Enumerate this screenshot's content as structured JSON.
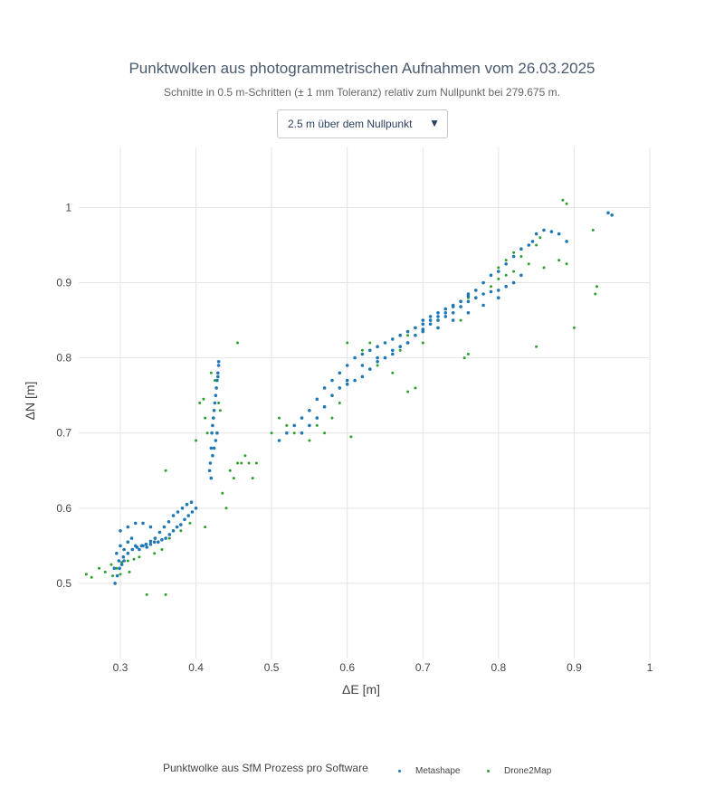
{
  "chart_data": {
    "type": "scatter",
    "title": "Punktwolken aus photogrammetrischen Aufnahmen vom 26.03.2025",
    "subtitle": "Schnitte in 0.5 m-Schritten (± 1 mm Toleranz) relativ zum Nullpunkt bei 279.675 m.",
    "xlabel": "ΔE [m]",
    "ylabel": "ΔN [m]",
    "xlim": [
      0.245,
      1.0
    ],
    "ylim": [
      0.4,
      1.08
    ],
    "x_ticks": [
      0.3,
      0.4,
      0.5,
      0.6,
      0.7,
      0.8,
      0.9,
      1
    ],
    "x_tick_labels": [
      "0.3",
      "0.4",
      "0.5",
      "0.6",
      "0.7",
      "0.8",
      "0.9",
      "1"
    ],
    "y_ticks": [
      0.5,
      0.6,
      0.7,
      0.8,
      0.9,
      1
    ],
    "y_tick_labels": [
      "0.5",
      "0.6",
      "0.7",
      "0.8",
      "0.9",
      "1"
    ],
    "grid": true,
    "legend_position": "bottom",
    "series": [
      {
        "name": "Metashape",
        "color": "#1f77b4",
        "x": [
          0.295,
          0.3,
          0.305,
          0.31,
          0.315,
          0.32,
          0.325,
          0.33,
          0.335,
          0.34,
          0.345,
          0.35,
          0.355,
          0.36,
          0.365,
          0.37,
          0.375,
          0.38,
          0.385,
          0.39,
          0.395,
          0.4,
          0.292,
          0.298,
          0.304,
          0.31,
          0.316,
          0.322,
          0.328,
          0.334,
          0.34,
          0.346,
          0.352,
          0.358,
          0.364,
          0.37,
          0.376,
          0.382,
          0.388,
          0.394,
          0.3,
          0.31,
          0.32,
          0.33,
          0.34,
          0.293,
          0.296,
          0.299,
          0.302,
          0.305,
          0.418,
          0.419,
          0.42,
          0.421,
          0.422,
          0.423,
          0.424,
          0.425,
          0.426,
          0.427,
          0.428,
          0.429,
          0.43,
          0.428,
          0.426,
          0.424,
          0.422,
          0.42,
          0.43,
          0.429,
          0.51,
          0.52,
          0.53,
          0.54,
          0.55,
          0.56,
          0.57,
          0.58,
          0.59,
          0.6,
          0.61,
          0.62,
          0.63,
          0.64,
          0.65,
          0.66,
          0.67,
          0.68,
          0.69,
          0.7,
          0.71,
          0.72,
          0.73,
          0.74,
          0.75,
          0.76,
          0.77,
          0.78,
          0.79,
          0.8,
          0.81,
          0.82,
          0.83,
          0.54,
          0.55,
          0.56,
          0.57,
          0.58,
          0.59,
          0.6,
          0.61,
          0.62,
          0.63,
          0.64,
          0.65,
          0.66,
          0.67,
          0.68,
          0.69,
          0.7,
          0.71,
          0.72,
          0.73,
          0.74,
          0.75,
          0.76,
          0.77,
          0.78,
          0.79,
          0.8,
          0.81,
          0.82,
          0.83,
          0.6,
          0.62,
          0.64,
          0.66,
          0.68,
          0.7,
          0.72,
          0.74,
          0.76,
          0.78,
          0.8,
          0.7,
          0.71,
          0.72,
          0.73,
          0.74,
          0.75,
          0.76,
          0.85,
          0.86,
          0.87,
          0.88,
          0.89,
          0.945,
          0.95,
          0.84,
          0.845
        ],
        "y": [
          0.54,
          0.55,
          0.545,
          0.555,
          0.56,
          0.55,
          0.545,
          0.55,
          0.548,
          0.552,
          0.555,
          0.555,
          0.558,
          0.56,
          0.565,
          0.57,
          0.575,
          0.578,
          0.585,
          0.59,
          0.595,
          0.6,
          0.52,
          0.53,
          0.535,
          0.54,
          0.545,
          0.548,
          0.55,
          0.552,
          0.556,
          0.56,
          0.568,
          0.575,
          0.582,
          0.59,
          0.595,
          0.6,
          0.605,
          0.608,
          0.57,
          0.575,
          0.58,
          0.58,
          0.575,
          0.5,
          0.51,
          0.52,
          0.525,
          0.53,
          0.65,
          0.66,
          0.68,
          0.7,
          0.71,
          0.72,
          0.73,
          0.74,
          0.75,
          0.76,
          0.77,
          0.78,
          0.79,
          0.7,
          0.69,
          0.68,
          0.67,
          0.64,
          0.795,
          0.775,
          0.69,
          0.7,
          0.71,
          0.72,
          0.73,
          0.745,
          0.76,
          0.77,
          0.78,
          0.79,
          0.8,
          0.805,
          0.81,
          0.815,
          0.82,
          0.825,
          0.83,
          0.835,
          0.84,
          0.845,
          0.85,
          0.855,
          0.86,
          0.868,
          0.875,
          0.882,
          0.89,
          0.9,
          0.91,
          0.915,
          0.925,
          0.935,
          0.945,
          0.7,
          0.71,
          0.72,
          0.735,
          0.75,
          0.76,
          0.765,
          0.77,
          0.775,
          0.785,
          0.795,
          0.8,
          0.805,
          0.815,
          0.82,
          0.83,
          0.838,
          0.845,
          0.85,
          0.855,
          0.86,
          0.868,
          0.875,
          0.88,
          0.885,
          0.888,
          0.89,
          0.895,
          0.9,
          0.91,
          0.77,
          0.79,
          0.8,
          0.81,
          0.82,
          0.835,
          0.84,
          0.85,
          0.86,
          0.87,
          0.88,
          0.85,
          0.855,
          0.86,
          0.865,
          0.87,
          0.875,
          0.885,
          0.965,
          0.97,
          0.968,
          0.965,
          0.955,
          0.993,
          0.99,
          0.95,
          0.955
        ]
      },
      {
        "name": "Drone2Map",
        "color": "#2ca02c",
        "x": [
          0.255,
          0.262,
          0.272,
          0.28,
          0.288,
          0.295,
          0.302,
          0.31,
          0.318,
          0.325,
          0.29,
          0.3,
          0.312,
          0.335,
          0.36,
          0.345,
          0.355,
          0.365,
          0.38,
          0.392,
          0.36,
          0.4,
          0.405,
          0.41,
          0.412,
          0.415,
          0.42,
          0.425,
          0.43,
          0.432,
          0.435,
          0.44,
          0.445,
          0.45,
          0.455,
          0.46,
          0.465,
          0.47,
          0.475,
          0.48,
          0.455,
          0.412,
          0.5,
          0.51,
          0.52,
          0.53,
          0.54,
          0.55,
          0.56,
          0.57,
          0.58,
          0.59,
          0.6,
          0.61,
          0.62,
          0.63,
          0.64,
          0.65,
          0.66,
          0.67,
          0.68,
          0.69,
          0.7,
          0.71,
          0.72,
          0.73,
          0.74,
          0.75,
          0.76,
          0.77,
          0.78,
          0.79,
          0.8,
          0.81,
          0.82,
          0.83,
          0.6,
          0.605,
          0.68,
          0.69,
          0.755,
          0.76,
          0.78,
          0.8,
          0.79,
          0.81,
          0.82,
          0.84,
          0.85,
          0.855,
          0.86,
          0.88,
          0.885,
          0.89,
          0.89,
          0.925,
          0.93,
          0.928,
          0.9,
          0.85
        ],
        "y": [
          0.512,
          0.508,
          0.52,
          0.515,
          0.525,
          0.52,
          0.528,
          0.53,
          0.532,
          0.535,
          0.51,
          0.512,
          0.515,
          0.485,
          0.485,
          0.54,
          0.545,
          0.56,
          0.57,
          0.58,
          0.65,
          0.69,
          0.74,
          0.745,
          0.72,
          0.7,
          0.78,
          0.77,
          0.74,
          0.73,
          0.62,
          0.6,
          0.65,
          0.64,
          0.82,
          0.66,
          0.67,
          0.66,
          0.64,
          0.66,
          0.66,
          0.575,
          0.7,
          0.72,
          0.71,
          0.7,
          0.72,
          0.69,
          0.71,
          0.7,
          0.72,
          0.74,
          0.77,
          0.8,
          0.81,
          0.82,
          0.79,
          0.8,
          0.78,
          0.81,
          0.83,
          0.84,
          0.82,
          0.85,
          0.84,
          0.86,
          0.87,
          0.85,
          0.88,
          0.89,
          0.9,
          0.91,
          0.92,
          0.93,
          0.94,
          0.935,
          0.82,
          0.695,
          0.755,
          0.76,
          0.8,
          0.805,
          0.9,
          0.905,
          0.895,
          0.91,
          0.915,
          0.925,
          0.95,
          0.96,
          0.92,
          0.93,
          1.01,
          1.005,
          0.925,
          0.97,
          0.895,
          0.885,
          0.84,
          0.815
        ]
      }
    ]
  },
  "dropdown": {
    "selected": "2.5 m über dem Nullpunkt",
    "arrow": "▼"
  },
  "legend": {
    "title": "Punktwolke aus SfM Prozess pro Software"
  }
}
